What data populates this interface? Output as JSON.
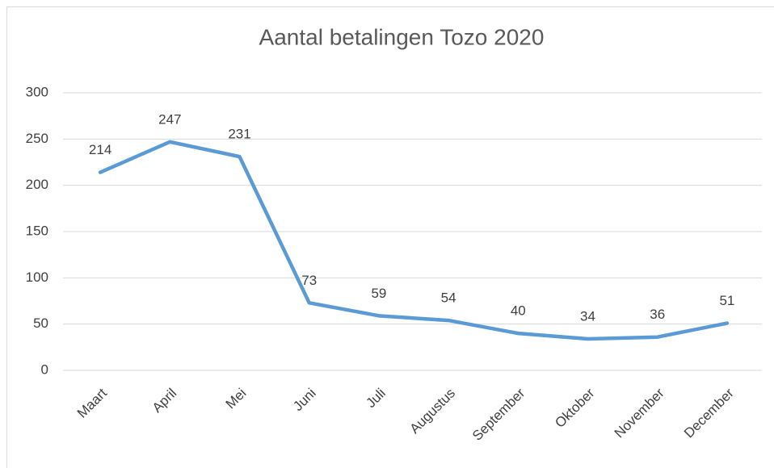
{
  "chart_data": {
    "type": "line",
    "title": "Aantal betalingen Tozo 2020",
    "categories": [
      "Maart",
      "April",
      "Mei",
      "Juni",
      "Juli",
      "Augustus",
      "September",
      "Oktober",
      "November",
      "December"
    ],
    "series": [
      {
        "name": "Aantal betalingen",
        "color": "#5b9bd5",
        "values": [
          214,
          247,
          231,
          73,
          59,
          54,
          40,
          34,
          36,
          51
        ]
      }
    ],
    "ylim": [
      0,
      300
    ],
    "yticks": [
      0,
      50,
      100,
      150,
      200,
      250,
      300
    ],
    "grid": true
  }
}
